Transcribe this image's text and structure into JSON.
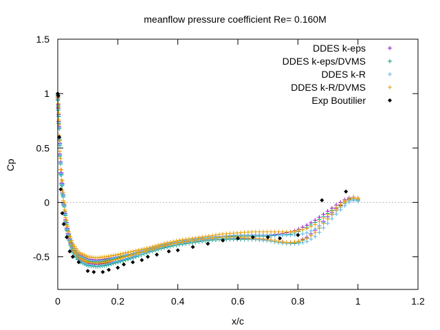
{
  "chart_data": {
    "type": "scatter",
    "title": "meanflow pressure coefficient  Re= 0.160M",
    "xlabel": "x/c",
    "ylabel": "Cp",
    "xlim": [
      0,
      1.2
    ],
    "ylim": [
      -0.8,
      1.5
    ],
    "xticks": [
      0,
      0.2,
      0.4,
      0.6,
      0.8,
      1,
      1.2
    ],
    "xtick_labels": [
      "0",
      "0.2",
      "0.4",
      "0.6",
      "0.8",
      "1",
      "1.2"
    ],
    "yticks": [
      1.5,
      1,
      0.5,
      0,
      -0.5
    ],
    "ytick_labels": [
      "1.5",
      "1",
      "0.5",
      "0",
      "-0.5"
    ],
    "zero_line": true,
    "legend_position": "top-right",
    "series": [
      {
        "name": "DDES k-eps",
        "marker": "plus",
        "color": "#9400d3",
        "upper": {
          "x": [
            0,
            0.005,
            0.01,
            0.02,
            0.03,
            0.04,
            0.05,
            0.07,
            0.1,
            0.13,
            0.16,
            0.2,
            0.25,
            0.3,
            0.35,
            0.4,
            0.45,
            0.5,
            0.55,
            0.6,
            0.65,
            0.7,
            0.74,
            0.78,
            0.8,
            0.83,
            0.86,
            0.9,
            0.93,
            0.96,
            0.98,
            1.0
          ],
          "y": [
            1.0,
            0.7,
            0.35,
            0.02,
            -0.2,
            -0.32,
            -0.4,
            -0.48,
            -0.52,
            -0.53,
            -0.52,
            -0.5,
            -0.47,
            -0.43,
            -0.39,
            -0.36,
            -0.34,
            -0.32,
            -0.31,
            -0.3,
            -0.3,
            -0.3,
            -0.29,
            -0.27,
            -0.25,
            -0.21,
            -0.16,
            -0.08,
            -0.02,
            0.03,
            0.05,
            0.04
          ]
        },
        "lower": {
          "x": [
            0,
            0.005,
            0.01,
            0.02,
            0.03,
            0.04,
            0.05,
            0.07,
            0.1,
            0.13,
            0.16,
            0.2,
            0.25,
            0.3,
            0.35,
            0.4,
            0.45,
            0.5,
            0.55,
            0.6,
            0.65,
            0.7,
            0.74,
            0.77,
            0.8,
            0.83,
            0.86,
            0.9,
            0.93,
            0.96,
            0.98,
            1.0
          ],
          "y": [
            1.0,
            0.6,
            0.25,
            -0.05,
            -0.25,
            -0.36,
            -0.44,
            -0.52,
            -0.56,
            -0.57,
            -0.56,
            -0.54,
            -0.5,
            -0.45,
            -0.41,
            -0.38,
            -0.36,
            -0.34,
            -0.33,
            -0.33,
            -0.33,
            -0.34,
            -0.36,
            -0.37,
            -0.36,
            -0.32,
            -0.25,
            -0.13,
            -0.05,
            0.01,
            0.04,
            0.03
          ]
        }
      },
      {
        "name": "DDES k-eps/DVMS",
        "marker": "plus",
        "color": "#009e73",
        "upper": {
          "x": [
            0,
            0.005,
            0.01,
            0.02,
            0.03,
            0.04,
            0.05,
            0.07,
            0.1,
            0.13,
            0.16,
            0.2,
            0.25,
            0.3,
            0.35,
            0.4,
            0.45,
            0.5,
            0.55,
            0.6,
            0.65,
            0.7,
            0.74,
            0.78,
            0.8,
            0.83,
            0.86,
            0.9,
            0.93,
            0.96,
            0.98,
            1.0
          ],
          "y": [
            0.98,
            0.68,
            0.33,
            0.0,
            -0.22,
            -0.34,
            -0.42,
            -0.5,
            -0.54,
            -0.55,
            -0.54,
            -0.51,
            -0.48,
            -0.44,
            -0.4,
            -0.37,
            -0.35,
            -0.33,
            -0.32,
            -0.31,
            -0.31,
            -0.31,
            -0.3,
            -0.29,
            -0.27,
            -0.23,
            -0.18,
            -0.1,
            -0.04,
            0.02,
            0.04,
            0.03
          ]
        },
        "lower": {
          "x": [
            0,
            0.005,
            0.01,
            0.02,
            0.03,
            0.04,
            0.05,
            0.07,
            0.1,
            0.13,
            0.16,
            0.2,
            0.25,
            0.3,
            0.35,
            0.4,
            0.45,
            0.5,
            0.55,
            0.6,
            0.65,
            0.7,
            0.74,
            0.77,
            0.8,
            0.83,
            0.86,
            0.9,
            0.93,
            0.96,
            0.98,
            1.0
          ],
          "y": [
            0.98,
            0.58,
            0.23,
            -0.07,
            -0.27,
            -0.38,
            -0.46,
            -0.54,
            -0.58,
            -0.59,
            -0.58,
            -0.55,
            -0.51,
            -0.46,
            -0.42,
            -0.39,
            -0.37,
            -0.35,
            -0.34,
            -0.34,
            -0.34,
            -0.35,
            -0.37,
            -0.38,
            -0.37,
            -0.33,
            -0.27,
            -0.15,
            -0.07,
            0.0,
            0.03,
            0.02
          ]
        }
      },
      {
        "name": "DDES k-R",
        "marker": "plus",
        "color": "#56b4e9",
        "upper": {
          "x": [
            0,
            0.005,
            0.01,
            0.02,
            0.03,
            0.04,
            0.05,
            0.07,
            0.1,
            0.13,
            0.16,
            0.2,
            0.25,
            0.3,
            0.35,
            0.4,
            0.45,
            0.5,
            0.55,
            0.6,
            0.65,
            0.7,
            0.74,
            0.78,
            0.8,
            0.83,
            0.86,
            0.9,
            0.93,
            0.96,
            0.98,
            1.0
          ],
          "y": [
            0.99,
            0.69,
            0.34,
            0.01,
            -0.21,
            -0.33,
            -0.41,
            -0.49,
            -0.53,
            -0.54,
            -0.53,
            -0.5,
            -0.47,
            -0.43,
            -0.39,
            -0.36,
            -0.34,
            -0.32,
            -0.31,
            -0.3,
            -0.3,
            -0.3,
            -0.3,
            -0.3,
            -0.3,
            -0.28,
            -0.24,
            -0.15,
            -0.07,
            0.0,
            0.03,
            0.02
          ]
        },
        "lower": {
          "x": [
            0,
            0.005,
            0.01,
            0.02,
            0.03,
            0.04,
            0.05,
            0.07,
            0.1,
            0.13,
            0.16,
            0.2,
            0.25,
            0.3,
            0.35,
            0.4,
            0.45,
            0.5,
            0.55,
            0.6,
            0.65,
            0.7,
            0.74,
            0.77,
            0.8,
            0.83,
            0.86,
            0.9,
            0.93,
            0.96,
            0.98,
            1.0
          ],
          "y": [
            0.99,
            0.59,
            0.24,
            -0.06,
            -0.26,
            -0.37,
            -0.45,
            -0.53,
            -0.57,
            -0.58,
            -0.57,
            -0.54,
            -0.5,
            -0.45,
            -0.41,
            -0.38,
            -0.36,
            -0.34,
            -0.33,
            -0.33,
            -0.34,
            -0.35,
            -0.37,
            -0.38,
            -0.38,
            -0.36,
            -0.31,
            -0.19,
            -0.1,
            -0.02,
            0.02,
            0.01
          ]
        }
      },
      {
        "name": "DDES k-R/DVMS",
        "marker": "plus",
        "color": "#e69f00",
        "upper": {
          "x": [
            0,
            0.005,
            0.01,
            0.02,
            0.03,
            0.04,
            0.05,
            0.07,
            0.1,
            0.13,
            0.16,
            0.2,
            0.25,
            0.3,
            0.35,
            0.4,
            0.45,
            0.5,
            0.55,
            0.6,
            0.65,
            0.7,
            0.74,
            0.78,
            0.8,
            0.83,
            0.86,
            0.9,
            0.93,
            0.96,
            0.98,
            1.0
          ],
          "y": [
            1.0,
            0.72,
            0.38,
            0.04,
            -0.18,
            -0.3,
            -0.38,
            -0.46,
            -0.5,
            -0.51,
            -0.5,
            -0.48,
            -0.45,
            -0.42,
            -0.38,
            -0.35,
            -0.33,
            -0.31,
            -0.29,
            -0.28,
            -0.27,
            -0.27,
            -0.27,
            -0.27,
            -0.26,
            -0.24,
            -0.2,
            -0.11,
            -0.04,
            0.02,
            0.05,
            0.04
          ]
        },
        "lower": {
          "x": [
            0,
            0.005,
            0.01,
            0.02,
            0.03,
            0.04,
            0.05,
            0.07,
            0.1,
            0.13,
            0.16,
            0.2,
            0.25,
            0.3,
            0.35,
            0.4,
            0.45,
            0.5,
            0.55,
            0.6,
            0.65,
            0.7,
            0.74,
            0.77,
            0.8,
            0.83,
            0.86,
            0.9,
            0.93,
            0.96,
            0.98,
            1.0
          ],
          "y": [
            1.0,
            0.62,
            0.28,
            -0.03,
            -0.23,
            -0.35,
            -0.43,
            -0.51,
            -0.55,
            -0.56,
            -0.55,
            -0.52,
            -0.48,
            -0.44,
            -0.4,
            -0.37,
            -0.35,
            -0.33,
            -0.32,
            -0.32,
            -0.33,
            -0.34,
            -0.36,
            -0.37,
            -0.36,
            -0.33,
            -0.27,
            -0.15,
            -0.06,
            0.01,
            0.04,
            0.03
          ]
        }
      },
      {
        "name": "Exp Boutilier",
        "marker": "diamond",
        "color": "#000000",
        "x": [
          0.0,
          0.002,
          0.005,
          0.01,
          0.015,
          0.02,
          0.03,
          0.04,
          0.05,
          0.07,
          0.1,
          0.12,
          0.15,
          0.17,
          0.2,
          0.22,
          0.25,
          0.28,
          0.3,
          0.33,
          0.37,
          0.4,
          0.45,
          0.5,
          0.55,
          0.6,
          0.65,
          0.7,
          0.74,
          0.8,
          0.88,
          0.96
        ],
        "y": [
          1.0,
          0.98,
          0.6,
          0.12,
          -0.1,
          -0.2,
          -0.32,
          -0.45,
          -0.5,
          -0.55,
          -0.63,
          -0.64,
          -0.64,
          -0.62,
          -0.6,
          -0.57,
          -0.55,
          -0.53,
          -0.5,
          -0.48,
          -0.45,
          -0.44,
          -0.41,
          -0.38,
          -0.35,
          -0.33,
          -0.32,
          -0.32,
          -0.33,
          -0.3,
          0.02,
          0.1
        ]
      }
    ]
  }
}
